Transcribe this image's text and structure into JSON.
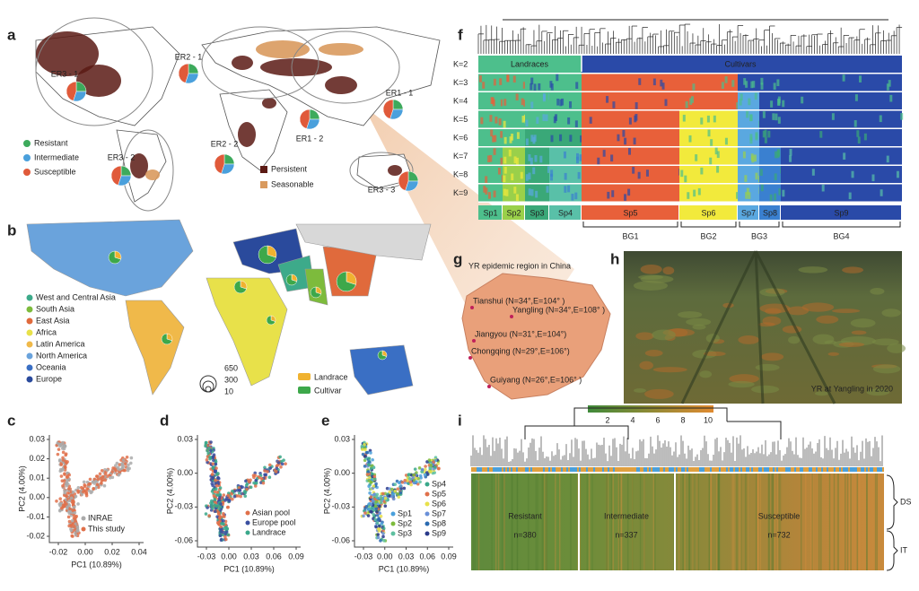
{
  "panels": {
    "a": {
      "label": "a",
      "regions": [
        "ER3 - 1",
        "ER2 - 1",
        "ER1 - 1",
        "ER3 - 2",
        "ER2 - 2",
        "ER1 - 2",
        "ER3 - 3"
      ],
      "legend": [
        "Resistant",
        "Intermediate",
        "Susceptible"
      ],
      "legend2": [
        "Persistent",
        "Seasonable"
      ]
    },
    "b": {
      "label": "b",
      "legend": [
        "West and Central Asia",
        "South Asia",
        "East Asia",
        "Africa",
        "Latin America",
        "North America",
        "Oceania",
        "Europe"
      ],
      "size_legend": [
        "650",
        "300",
        "10"
      ],
      "type_legend": [
        "Landrace",
        "Cultivar"
      ]
    },
    "c": {
      "label": "c",
      "ylabel": "PC2 (4.00%)",
      "xlabel": "PC1 (10.89%)",
      "yticks": [
        "0.03",
        "0.02",
        "0.01",
        "0.00",
        "-0.01",
        "-0.02"
      ],
      "xticks": [
        "-0.02",
        "0.00",
        "0.02",
        "0.04"
      ],
      "legend": [
        "INRAE",
        "This study"
      ]
    },
    "d": {
      "label": "d",
      "ylabel": "PC2 (4.00%)",
      "xlabel": "PC1 (10.89%)",
      "yticks": [
        "0.03",
        "0.00",
        "-0.03",
        "-0.06"
      ],
      "xticks": [
        "-0.03",
        "0.00",
        "0.03",
        "0.06",
        "0.09"
      ],
      "legend": [
        "Asian pool",
        "Europe pool",
        "Landrace"
      ]
    },
    "e": {
      "label": "e",
      "ylabel": "PC2 (4.00%)",
      "xlabel": "PC1 (10.89%)",
      "yticks": [
        "0.03",
        "0.00",
        "-0.03",
        "-0.06"
      ],
      "xticks": [
        "-0.03",
        "0.00",
        "0.03",
        "0.06",
        "0.09"
      ],
      "legend": [
        "Sp4",
        "Sp5",
        "Sp6",
        "Sp1",
        "Sp2",
        "Sp3",
        "Sp7",
        "Sp8",
        "Sp9"
      ]
    },
    "f": {
      "label": "f",
      "k_labels": [
        "K=2",
        "K=3",
        "K=4",
        "K=5",
        "K=6",
        "K=7",
        "K=8",
        "K=9"
      ],
      "groups": [
        "Landraces",
        "Cultivars"
      ],
      "subpops": [
        "Sp1",
        "Sp2",
        "Sp3",
        "Sp4",
        "Sp5",
        "Sp6",
        "Sp7",
        "Sp8",
        "Sp9"
      ],
      "bg": [
        "BG1",
        "BG2",
        "BG3",
        "BG4"
      ]
    },
    "g": {
      "label": "g",
      "title": "YR epidemic region in China",
      "places": [
        "Tianshui (N=34°,E=104° )",
        "Yangling (N=34°,E=108° )",
        "Jiangyou (N=31°,E=104°)",
        "Chongqing (N=29°,E=106°)",
        "Guiyang (N=26°,E=106° )"
      ]
    },
    "h": {
      "label": "h",
      "caption": "YR at Yangling in 2020"
    },
    "i": {
      "label": "i",
      "colorbar": [
        "2",
        "4",
        "6",
        "8",
        "10"
      ],
      "groups": [
        "Resistant",
        "Intermediate",
        "Susceptible"
      ],
      "counts": [
        "n=380",
        "n=337",
        "n=732"
      ],
      "side": [
        "DS",
        "IT"
      ]
    }
  }
}
